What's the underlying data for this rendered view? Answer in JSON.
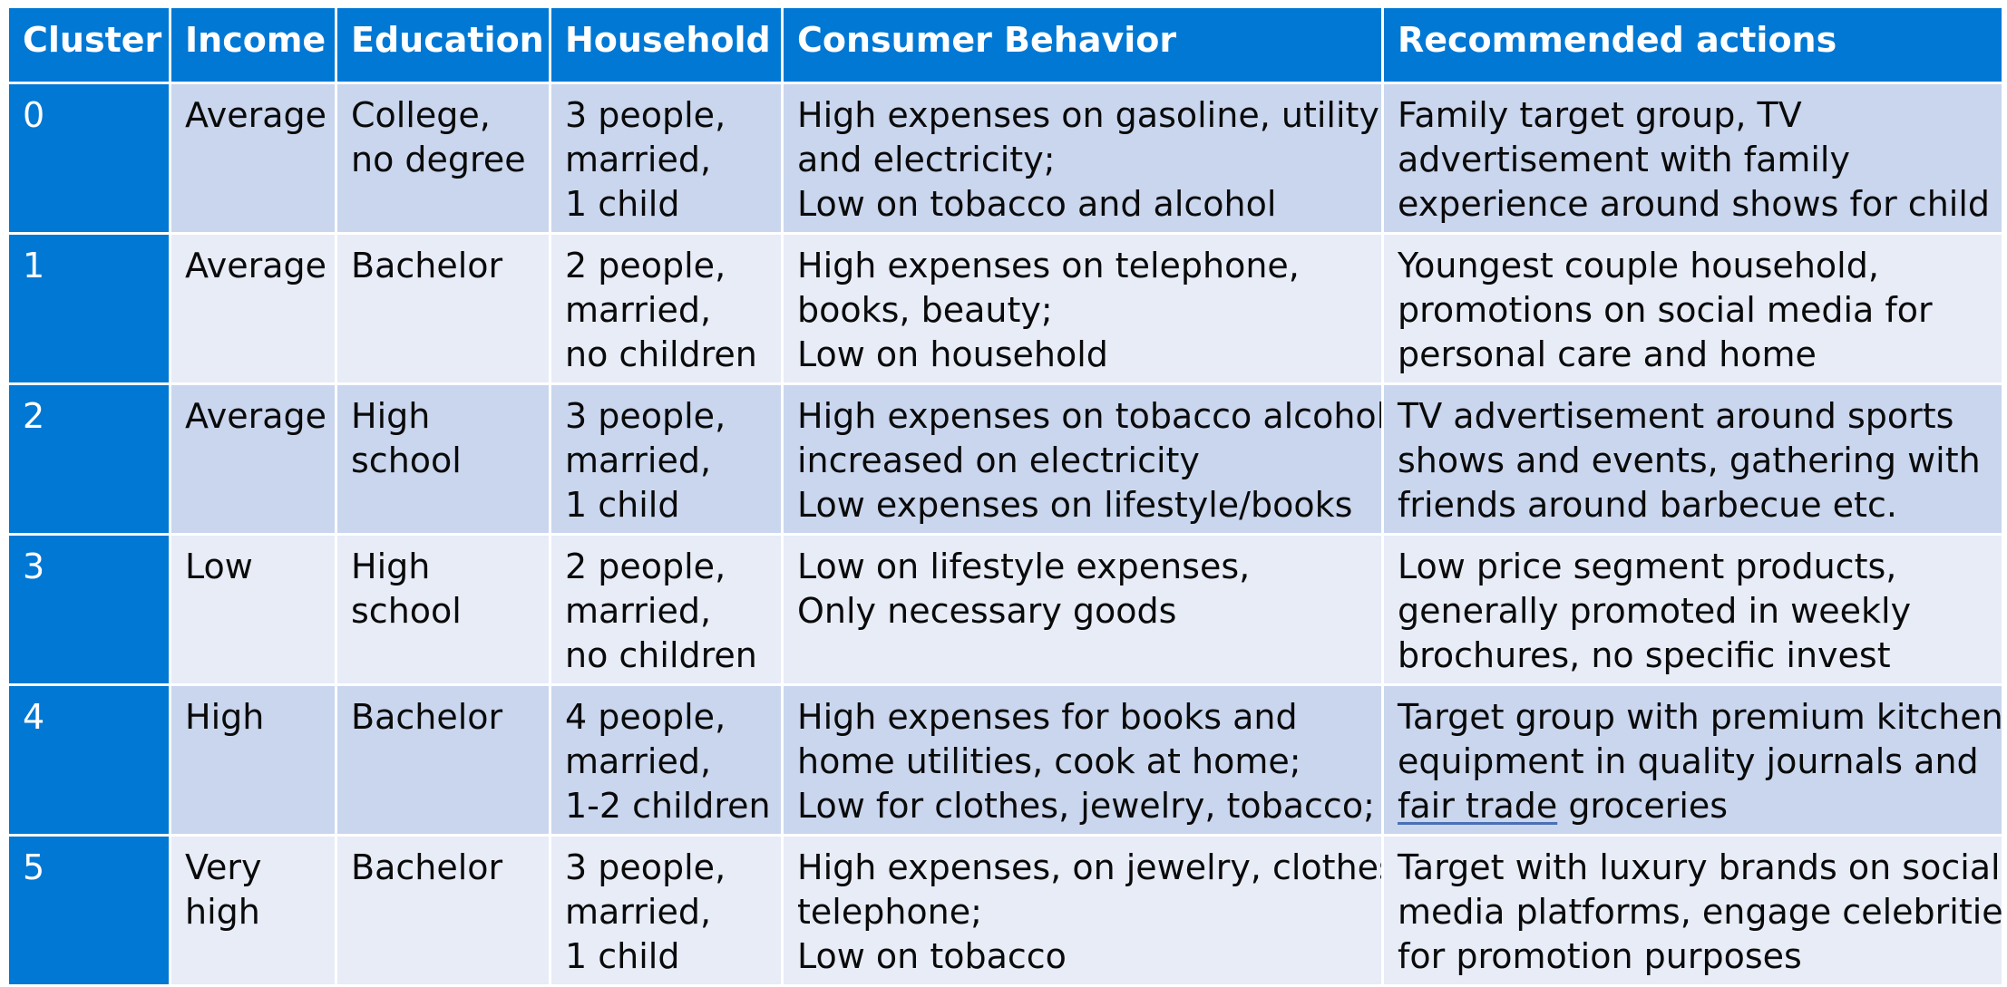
{
  "columns": [
    {
      "label": "Cluster"
    },
    {
      "label": "Income"
    },
    {
      "label": "Education"
    },
    {
      "label": "Household"
    },
    {
      "label": "Consumer Behavior"
    },
    {
      "label": "Recommended actions"
    }
  ],
  "colors": {
    "header_bg": "#0078d4",
    "row_dark": "#c9d6ee",
    "row_light": "#e7ecf7"
  },
  "rows": [
    {
      "cluster": "0",
      "income": [
        "Average"
      ],
      "education": [
        "College,",
        "no degree"
      ],
      "household": [
        "3 people,",
        "married,",
        "1 child"
      ],
      "behavior": [
        "High expenses on gasoline, utility",
        "and electricity;",
        "Low on tobacco and alcohol"
      ],
      "actions": [
        "Family target group, TV",
        "advertisement with family",
        "experience around shows for child"
      ]
    },
    {
      "cluster": "1",
      "income": [
        "Average"
      ],
      "education": [
        "Bachelor"
      ],
      "household": [
        "2 people,",
        "married,",
        "no children"
      ],
      "behavior": [
        "High expenses on telephone,",
        "books, beauty;",
        "Low on household"
      ],
      "actions": [
        "Youngest couple household,",
        "promotions on social media for",
        "personal care and home"
      ]
    },
    {
      "cluster": "2",
      "income": [
        "Average"
      ],
      "education": [
        "High",
        "school"
      ],
      "household": [
        "3 people,",
        "married,",
        "1 child"
      ],
      "behavior": [
        "High expenses on tobacco alcohol;",
        "increased on electricity",
        "Low expenses on lifestyle/books"
      ],
      "actions": [
        "TV advertisement around sports",
        "shows and events, gathering with",
        "friends around barbecue etc."
      ]
    },
    {
      "cluster": "3",
      "income": [
        "Low"
      ],
      "education": [
        "High",
        "school"
      ],
      "household": [
        "2 people,",
        "married,",
        "no children"
      ],
      "behavior": [
        "Low on lifestyle expenses,",
        "Only necessary goods"
      ],
      "actions": [
        "Low price segment products,",
        "generally promoted in weekly",
        "brochures, no specific invest"
      ]
    },
    {
      "cluster": "4",
      "income": [
        "High"
      ],
      "education": [
        "Bachelor"
      ],
      "household": [
        "4 people,",
        "married,",
        "1-2 children"
      ],
      "behavior": [
        "High expenses for books and",
        "home utilities, cook at home;",
        "Low for clothes, jewelry, tobacco;"
      ],
      "actions": [
        "Target group with premium kitchen",
        "equipment in quality journals and"
      ],
      "actions_last_underlined": "fair trade",
      "actions_last_rest": " groceries"
    },
    {
      "cluster": "5",
      "income": [
        "Very",
        "high"
      ],
      "education": [
        "Bachelor"
      ],
      "household": [
        "3 people,",
        "married,",
        "1 child"
      ],
      "behavior": [
        "High expenses, on jewelry, clothes,",
        "telephone;",
        "Low on tobacco"
      ],
      "actions": [
        "Target with luxury brands on social",
        "media platforms, engage celebrities",
        "for promotion purposes"
      ]
    }
  ]
}
